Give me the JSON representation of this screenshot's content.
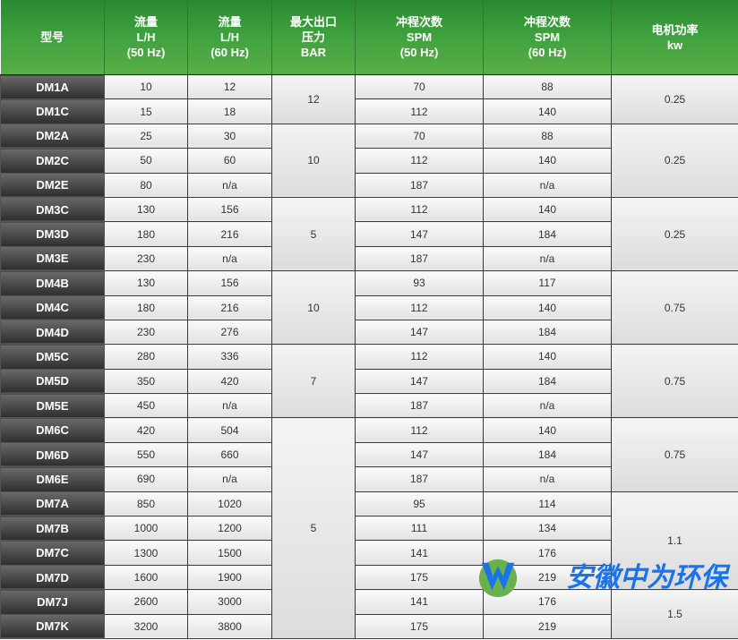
{
  "headers": [
    [
      "型号"
    ],
    [
      "流量",
      "L/H",
      "(50 Hz)"
    ],
    [
      "流量",
      "L/H",
      "(60 Hz)"
    ],
    [
      "最大出口",
      "压力",
      "BAR"
    ],
    [
      "冲程次数",
      "SPM",
      "(50 Hz)"
    ],
    [
      "冲程次数",
      "SPM",
      "(60 Hz)"
    ],
    [
      "电机功率",
      "kw"
    ]
  ],
  "rows": [
    {
      "model": "DM1A",
      "flow50": "10",
      "flow60": "12",
      "spm50": "70",
      "spm60": "88"
    },
    {
      "model": "DM1C",
      "flow50": "15",
      "flow60": "18",
      "spm50": "112",
      "spm60": "140"
    },
    {
      "model": "DM2A",
      "flow50": "25",
      "flow60": "30",
      "spm50": "70",
      "spm60": "88"
    },
    {
      "model": "DM2C",
      "flow50": "50",
      "flow60": "60",
      "spm50": "112",
      "spm60": "140"
    },
    {
      "model": "DM2E",
      "flow50": "80",
      "flow60": "n/a",
      "spm50": "187",
      "spm60": "n/a"
    },
    {
      "model": "DM3C",
      "flow50": "130",
      "flow60": "156",
      "spm50": "112",
      "spm60": "140"
    },
    {
      "model": "DM3D",
      "flow50": "180",
      "flow60": "216",
      "spm50": "147",
      "spm60": "184"
    },
    {
      "model": "DM3E",
      "flow50": "230",
      "flow60": "n/a",
      "spm50": "187",
      "spm60": "n/a"
    },
    {
      "model": "DM4B",
      "flow50": "130",
      "flow60": "156",
      "spm50": "93",
      "spm60": "117"
    },
    {
      "model": "DM4C",
      "flow50": "180",
      "flow60": "216",
      "spm50": "112",
      "spm60": "140"
    },
    {
      "model": "DM4D",
      "flow50": "230",
      "flow60": "276",
      "spm50": "147",
      "spm60": "184"
    },
    {
      "model": "DM5C",
      "flow50": "280",
      "flow60": "336",
      "spm50": "112",
      "spm60": "140"
    },
    {
      "model": "DM5D",
      "flow50": "350",
      "flow60": "420",
      "spm50": "147",
      "spm60": "184"
    },
    {
      "model": "DM5E",
      "flow50": "450",
      "flow60": "n/a",
      "spm50": "187",
      "spm60": "n/a"
    },
    {
      "model": "DM6C",
      "flow50": "420",
      "flow60": "504",
      "spm50": "112",
      "spm60": "140"
    },
    {
      "model": "DM6D",
      "flow50": "550",
      "flow60": "660",
      "spm50": "147",
      "spm60": "184"
    },
    {
      "model": "DM6E",
      "flow50": "690",
      "flow60": "n/a",
      "spm50": "187",
      "spm60": "n/a"
    },
    {
      "model": "DM7A",
      "flow50": "850",
      "flow60": "1020",
      "spm50": "95",
      "spm60": "114"
    },
    {
      "model": "DM7B",
      "flow50": "1000",
      "flow60": "1200",
      "spm50": "111",
      "spm60": "134"
    },
    {
      "model": "DM7C",
      "flow50": "1300",
      "flow60": "1500",
      "spm50": "141",
      "spm60": "176"
    },
    {
      "model": "DM7D",
      "flow50": "1600",
      "flow60": "1900",
      "spm50": "175",
      "spm60": "219"
    },
    {
      "model": "DM7J",
      "flow50": "2600",
      "flow60": "3000",
      "spm50": "141",
      "spm60": "176"
    },
    {
      "model": "DM7K",
      "flow50": "3200",
      "flow60": "3800",
      "spm50": "175",
      "spm60": "219"
    }
  ],
  "pressure_groups": [
    {
      "value": "12",
      "span": 2
    },
    {
      "value": "10",
      "span": 3
    },
    {
      "value": "5",
      "span": 3
    },
    {
      "value": "10",
      "span": 3
    },
    {
      "value": "7",
      "span": 3
    },
    {
      "value": "5",
      "span": 9
    }
  ],
  "power_groups": [
    {
      "value": "0.25",
      "span": 2
    },
    {
      "value": "0.25",
      "span": 3
    },
    {
      "value": "0.25",
      "span": 3
    },
    {
      "value": "0.75",
      "span": 3
    },
    {
      "value": "0.75",
      "span": 3
    },
    {
      "value": "0.75",
      "span": 3
    },
    {
      "value": "1.1",
      "span": 4
    },
    {
      "value": "1.5",
      "span": 2
    }
  ],
  "watermark": {
    "text": "安徽中为环保",
    "colors": {
      "blue": "#1a73e8",
      "green": "#6ab04c"
    }
  }
}
